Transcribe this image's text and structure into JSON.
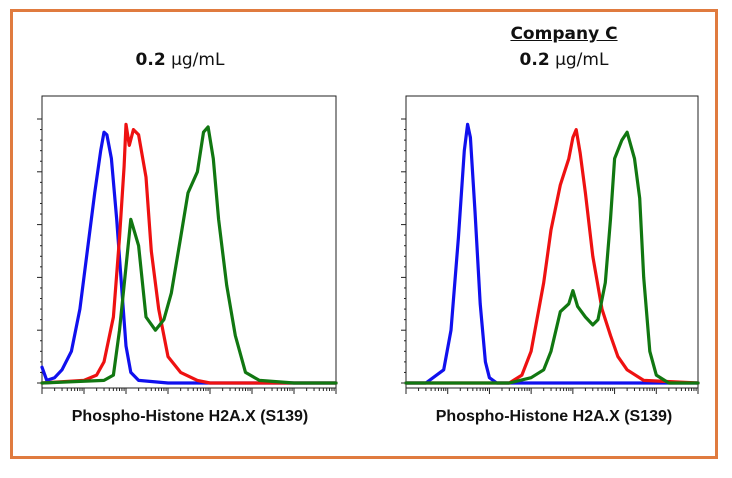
{
  "panels": [
    {
      "company": "",
      "conc_value": "0.2",
      "conc_unit": "μg/mL",
      "xlabel": "Phospho-Histone H2A.X (S139)"
    },
    {
      "company": "Company C",
      "conc_value": "0.2",
      "conc_unit": "μg/mL",
      "xlabel": "Phospho-Histone H2A.X (S139)"
    }
  ],
  "colors": {
    "blue": "#1010ee",
    "red": "#ee1111",
    "green": "#117711",
    "frame": "#e07b3f"
  },
  "chart_data": [
    {
      "type": "line",
      "title": "0.2 μg/mL",
      "xlabel": "Phospho-Histone H2A.X (S139)",
      "ylabel": "",
      "xscale": "log",
      "xlim": [
        1,
        10000000
      ],
      "ylim": [
        0,
        100
      ],
      "grid": false,
      "series": [
        {
          "color": "#1010ee",
          "x": [
            1,
            1.3,
            2,
            3,
            5,
            8,
            12,
            18,
            25,
            30,
            35,
            45,
            60,
            80,
            100,
            130,
            200,
            1000,
            10000000
          ],
          "y": [
            6,
            1,
            2,
            5,
            12,
            28,
            50,
            72,
            88,
            95,
            94,
            85,
            62,
            35,
            14,
            4,
            1,
            0,
            0
          ]
        },
        {
          "color": "#ee1111",
          "x": [
            1,
            10,
            20,
            30,
            50,
            70,
            90,
            100,
            120,
            150,
            200,
            300,
            400,
            600,
            1000,
            2000,
            5000,
            10000,
            10000000
          ],
          "y": [
            0,
            1,
            3,
            8,
            25,
            55,
            82,
            98,
            90,
            96,
            94,
            78,
            50,
            28,
            10,
            4,
            1,
            0,
            0
          ]
        },
        {
          "color": "#117711",
          "x": [
            1,
            30,
            50,
            70,
            100,
            130,
            200,
            300,
            500,
            800,
            1200,
            2000,
            3000,
            5000,
            7000,
            9000,
            12000,
            16000,
            25000,
            40000,
            70000,
            150000,
            1000000,
            10000000
          ],
          "y": [
            0,
            1,
            3,
            20,
            44,
            62,
            52,
            25,
            20,
            24,
            34,
            55,
            72,
            80,
            95,
            97,
            85,
            62,
            37,
            18,
            4,
            1,
            0,
            0
          ]
        }
      ]
    },
    {
      "type": "line",
      "title": "0.2 μg/mL",
      "xlabel": "Phospho-Histone H2A.X (S139)",
      "ylabel": "",
      "xscale": "log",
      "xlim": [
        1,
        10000000
      ],
      "ylim": [
        0,
        100
      ],
      "grid": false,
      "series": [
        {
          "color": "#1010ee",
          "x": [
            1,
            3,
            8,
            12,
            18,
            25,
            30,
            35,
            45,
            60,
            80,
            100,
            150,
            1000,
            10000000
          ],
          "y": [
            0,
            0,
            5,
            20,
            55,
            88,
            98,
            93,
            65,
            30,
            8,
            2,
            0,
            0,
            0
          ]
        },
        {
          "color": "#ee1111",
          "x": [
            1,
            300,
            600,
            1000,
            2000,
            3000,
            5000,
            8000,
            10000,
            12000,
            15000,
            20000,
            30000,
            50000,
            80000,
            120000,
            200000,
            500000,
            10000000
          ],
          "y": [
            0,
            0,
            3,
            12,
            38,
            58,
            75,
            85,
            93,
            96,
            87,
            72,
            48,
            28,
            18,
            10,
            5,
            1,
            0
          ]
        },
        {
          "color": "#117711",
          "x": [
            1,
            300,
            1000,
            2000,
            3000,
            5000,
            8000,
            10000,
            13000,
            20000,
            30000,
            40000,
            60000,
            80000,
            100000,
            150000,
            200000,
            300000,
            400000,
            500000,
            700000,
            1000000,
            2000000,
            10000000
          ],
          "y": [
            0,
            0,
            2,
            5,
            12,
            27,
            30,
            35,
            29,
            25,
            22,
            24,
            38,
            62,
            85,
            92,
            95,
            85,
            70,
            40,
            12,
            3,
            0,
            0
          ]
        }
      ]
    }
  ]
}
